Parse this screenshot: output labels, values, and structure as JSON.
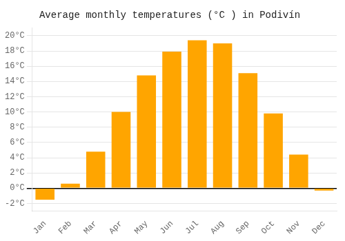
{
  "chart_data": {
    "type": "bar",
    "title": "Average monthly temperatures (°C ) in Podivín",
    "categories": [
      "Jan",
      "Feb",
      "Mar",
      "Apr",
      "May",
      "Jun",
      "Jul",
      "Aug",
      "Sep",
      "Oct",
      "Nov",
      "Dec"
    ],
    "values": [
      -1.5,
      0.6,
      4.8,
      10.0,
      14.8,
      17.9,
      19.4,
      19.0,
      15.1,
      9.8,
      4.4,
      -0.3
    ],
    "color": "#FFA500",
    "ylim": [
      -3,
      21
    ],
    "yticks": [
      {
        "value": -2,
        "label": "-2°C"
      },
      {
        "value": 0,
        "label": "0°C"
      },
      {
        "value": 2,
        "label": "2°C"
      },
      {
        "value": 4,
        "label": "4°C"
      },
      {
        "value": 6,
        "label": "6°C"
      },
      {
        "value": 8,
        "label": "8°C"
      },
      {
        "value": 10,
        "label": "10°C"
      },
      {
        "value": 12,
        "label": "12°C"
      },
      {
        "value": 14,
        "label": "14°C"
      },
      {
        "value": 16,
        "label": "16°C"
      },
      {
        "value": 18,
        "label": "18°C"
      },
      {
        "value": 20,
        "label": "20°C"
      }
    ],
    "grid": true
  }
}
